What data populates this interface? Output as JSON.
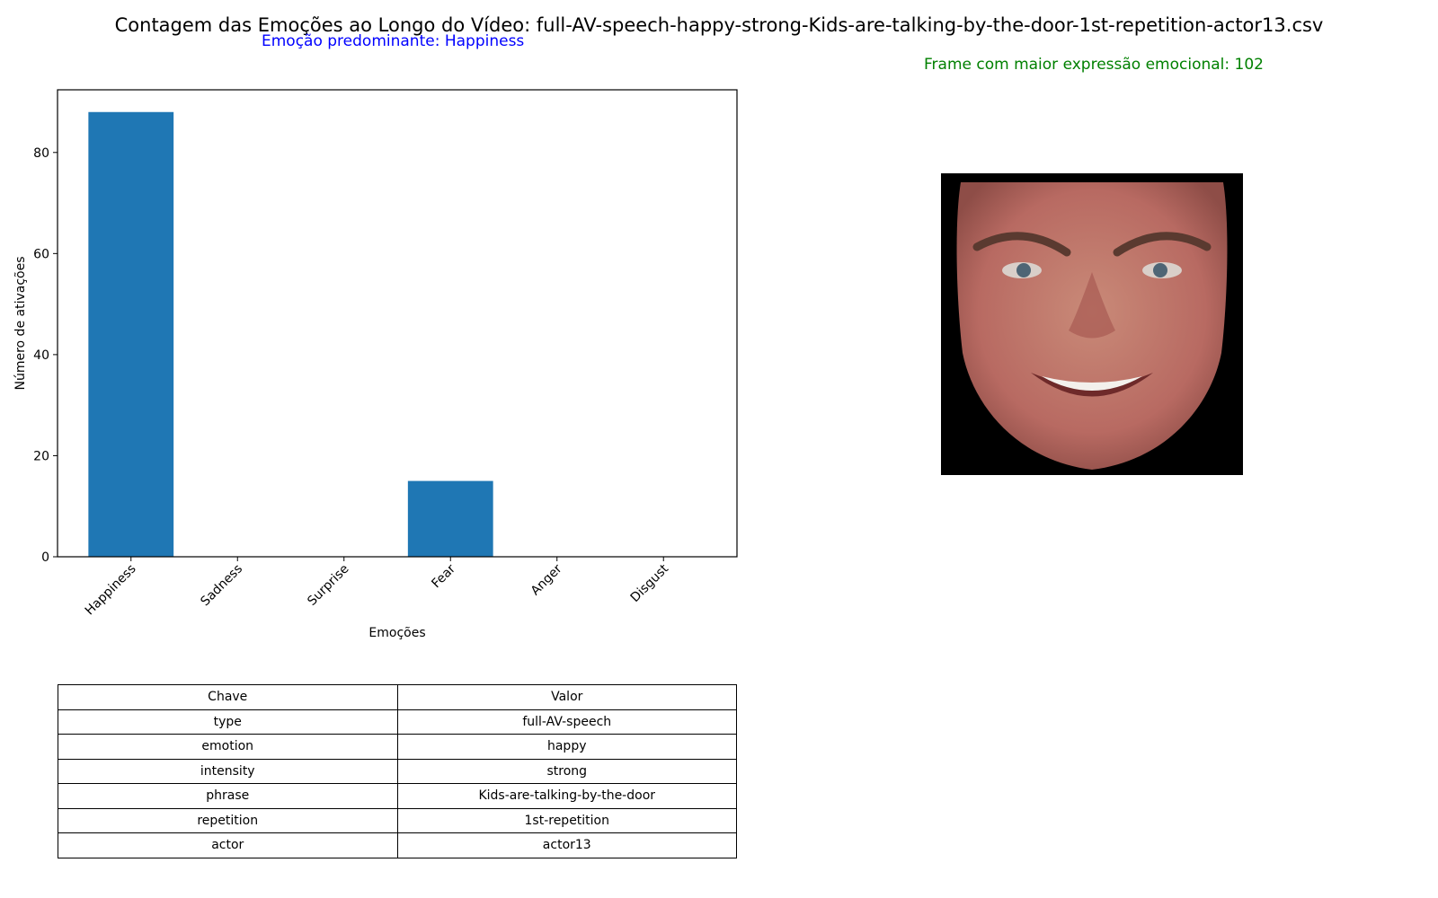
{
  "title": "Contagem das Emoções ao Longo do Vídeo: full-AV-speech-happy-strong-Kids-are-talking-by-the-door-1st-repetition-actor13.csv",
  "predominant_label": "Emoção predominante: Happiness",
  "frame_label": "Frame com maior expressão emocional: 102",
  "colors": {
    "bar": "#1f77b4",
    "predominant": "#0000ff",
    "frame": "#008000"
  },
  "chart_data": {
    "type": "bar",
    "categories": [
      "Happiness",
      "Sadness",
      "Surprise",
      "Fear",
      "Anger",
      "Disgust"
    ],
    "values": [
      88,
      0,
      0,
      15,
      0,
      0
    ],
    "xlabel": "Emoções",
    "ylabel": "Número de ativações",
    "ylim": [
      0,
      92.4
    ],
    "yticks": [
      0,
      20,
      40,
      60,
      80
    ],
    "grid": false
  },
  "table": {
    "header": [
      "Chave",
      "Valor"
    ],
    "rows": [
      [
        "type",
        "full-AV-speech"
      ],
      [
        "emotion",
        "happy"
      ],
      [
        "intensity",
        "strong"
      ],
      [
        "phrase",
        "Kids-are-talking-by-the-door"
      ],
      [
        "repetition",
        "1st-repetition"
      ],
      [
        "actor",
        "actor13"
      ]
    ]
  }
}
